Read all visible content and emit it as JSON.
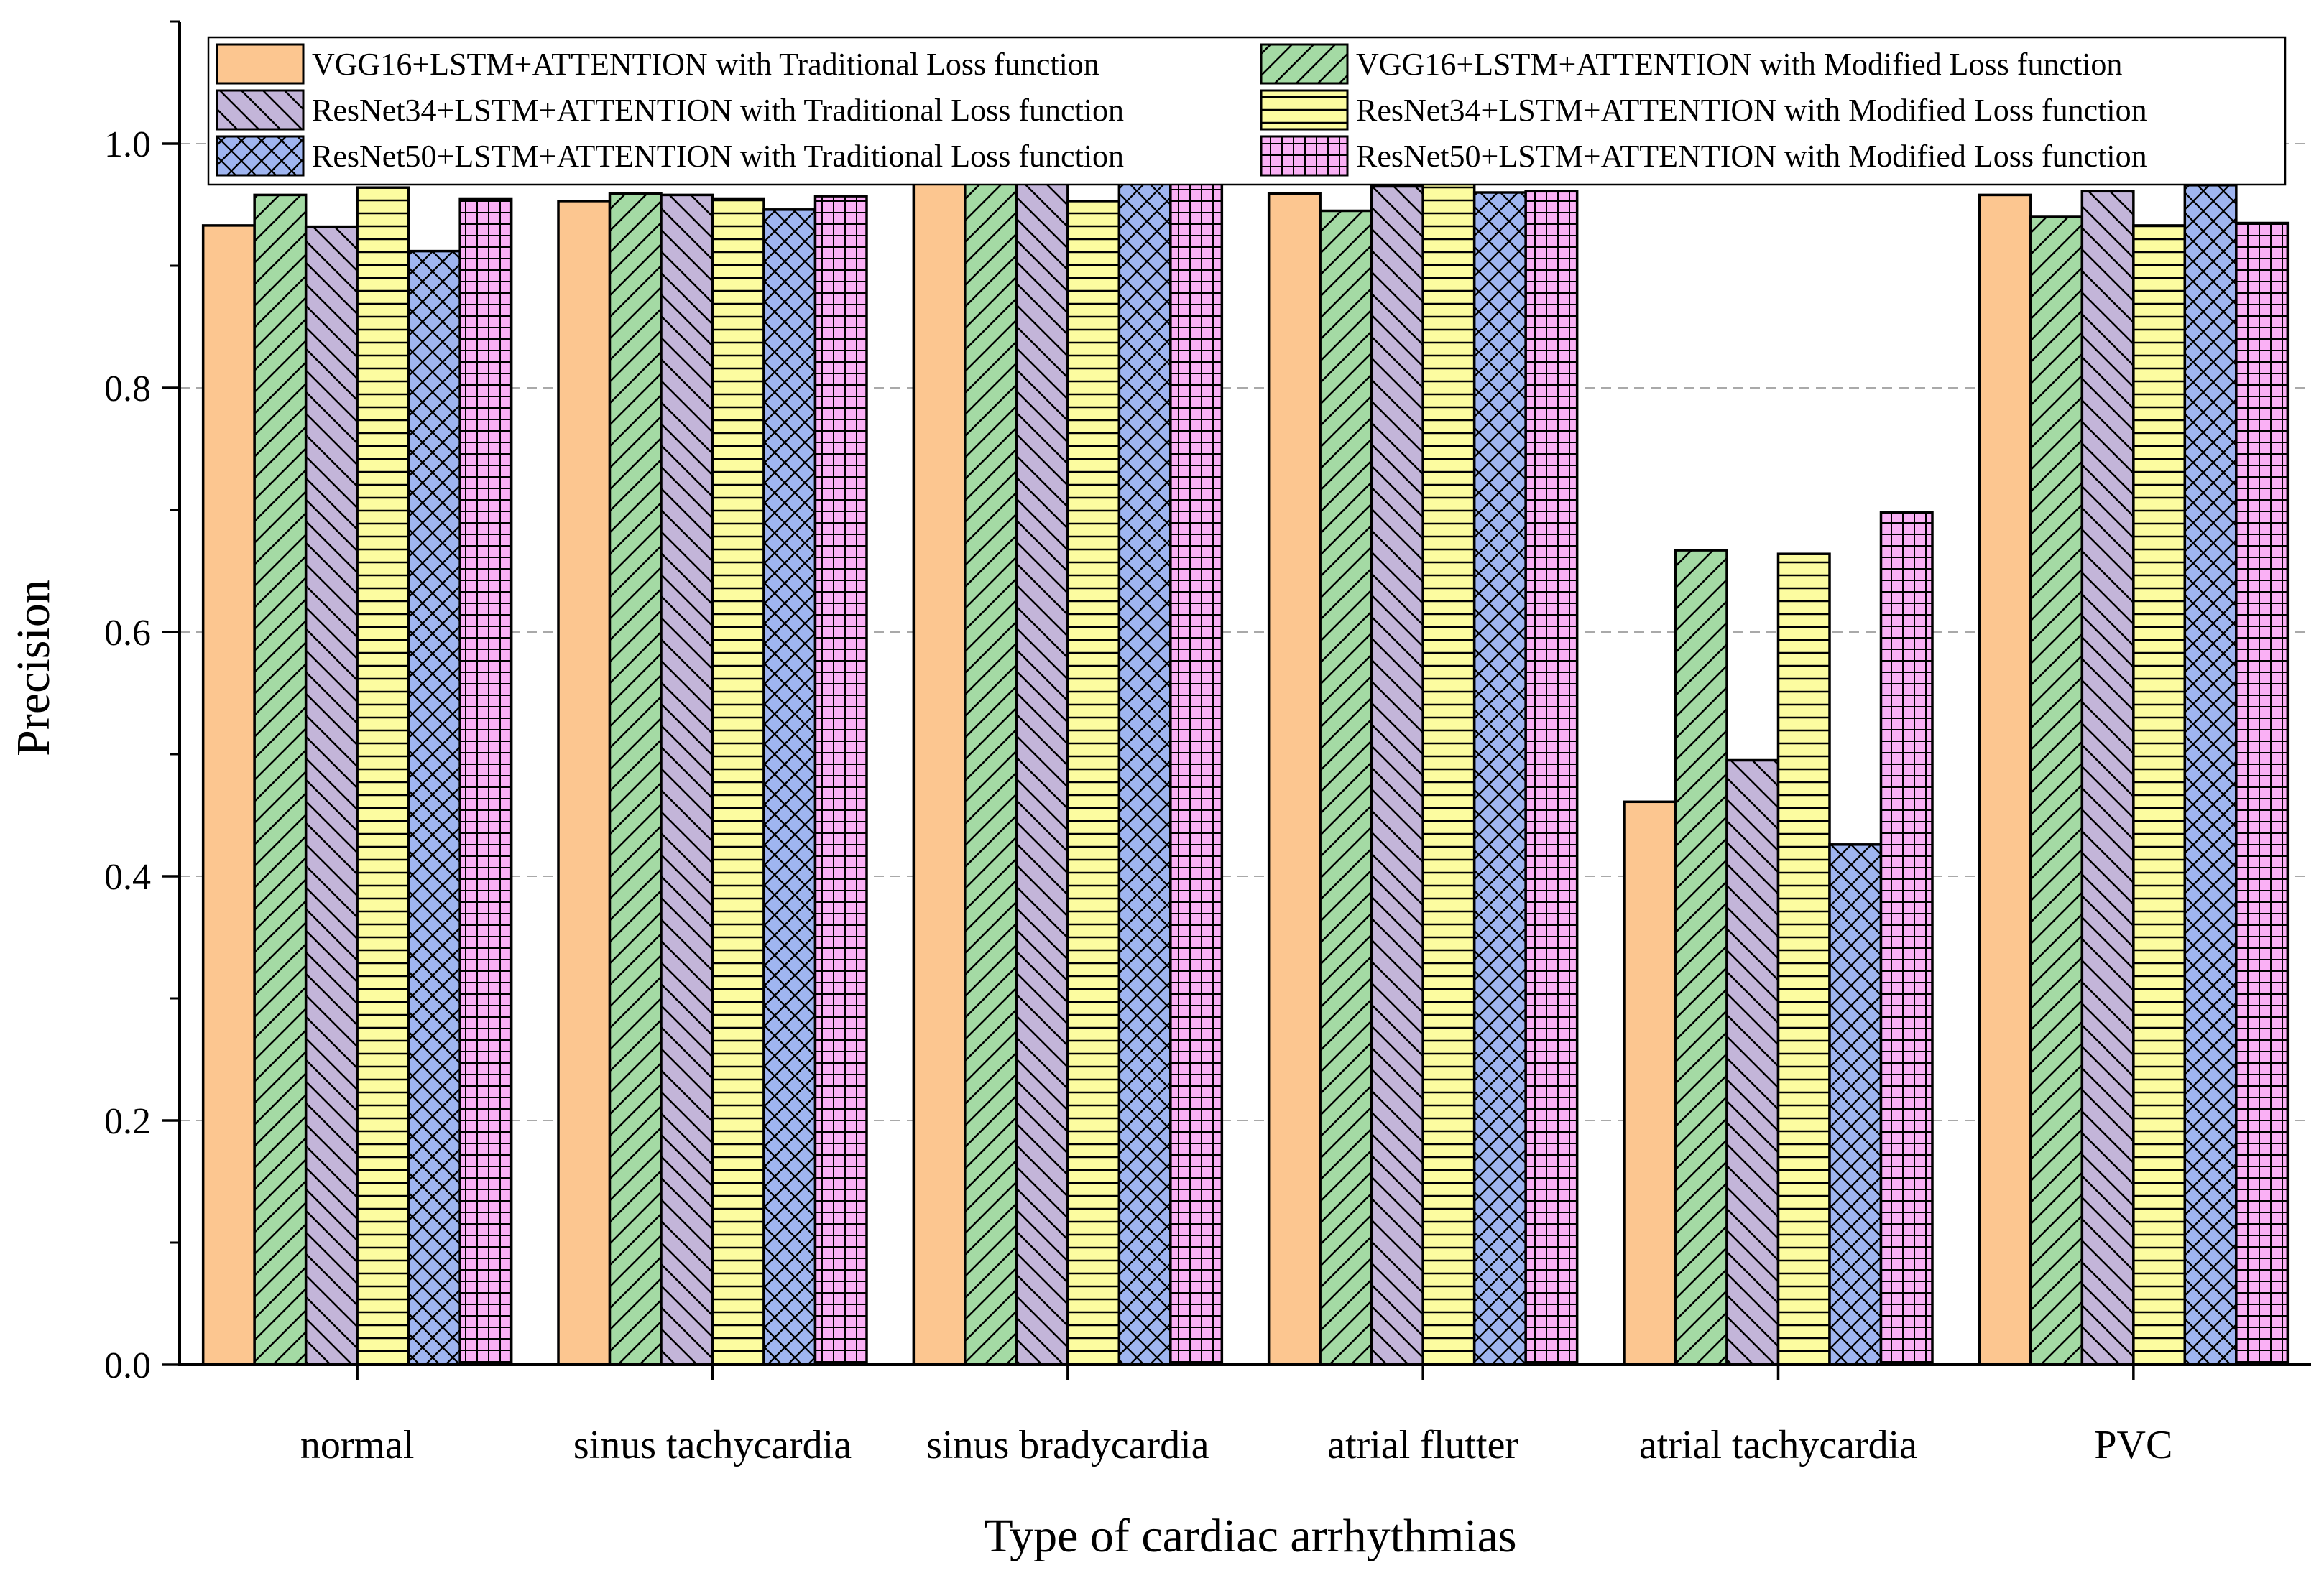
{
  "chart_data": {
    "type": "bar",
    "title": "",
    "xlabel": "Type of cardiac arrhythmias",
    "ylabel": "Precision",
    "ylim": [
      0.0,
      1.1
    ],
    "yticks": [
      0.0,
      0.2,
      0.4,
      0.6,
      0.8,
      1.0
    ],
    "ytick_labels": [
      "0.0",
      "0.2",
      "0.4",
      "0.6",
      "0.8",
      "1.0"
    ],
    "grid": "horizontal dashed at major ticks",
    "legend_position": "top, two columns",
    "categories": [
      "normal",
      "sinus tachycardia",
      "sinus bradycardia",
      "atrial flutter",
      "atrial tachycardia",
      "PVC"
    ],
    "series": [
      {
        "name": "VGG16+LSTM+ATTENTION with Traditional Loss function",
        "color": "#FCC690",
        "pattern": "solid",
        "values": [
          0.933,
          0.953,
          0.972,
          0.959,
          0.461,
          0.958
        ]
      },
      {
        "name": "VGG16+LSTM+ATTENTION with Modified Loss function",
        "color": "#A4DAA4",
        "pattern": "diag-right",
        "values": [
          0.958,
          0.959,
          0.976,
          0.945,
          0.667,
          0.94
        ]
      },
      {
        "name": "ResNet34+LSTM+ATTENTION with Traditional Loss function",
        "color": "#C3B5D9",
        "pattern": "diag-left",
        "values": [
          0.932,
          0.958,
          0.977,
          0.965,
          0.495,
          0.961
        ]
      },
      {
        "name": "ResNet34+LSTM+ATTENTION with Modified Loss function",
        "color": "#FCFCA0",
        "pattern": "horizontal",
        "values": [
          0.964,
          0.955,
          0.953,
          0.972,
          0.664,
          0.933
        ]
      },
      {
        "name": "ResNet50+LSTM+ATTENTION with Traditional Loss function",
        "color": "#9FB5F0",
        "pattern": "crosshatch",
        "values": [
          0.912,
          0.946,
          0.982,
          0.96,
          0.426,
          0.966
        ]
      },
      {
        "name": "ResNet50+LSTM+ATTENTION with Modified Loss function",
        "color": "#FAB0F5",
        "pattern": "grid",
        "values": [
          0.955,
          0.957,
          0.978,
          0.961,
          0.698,
          0.935
        ]
      }
    ]
  }
}
